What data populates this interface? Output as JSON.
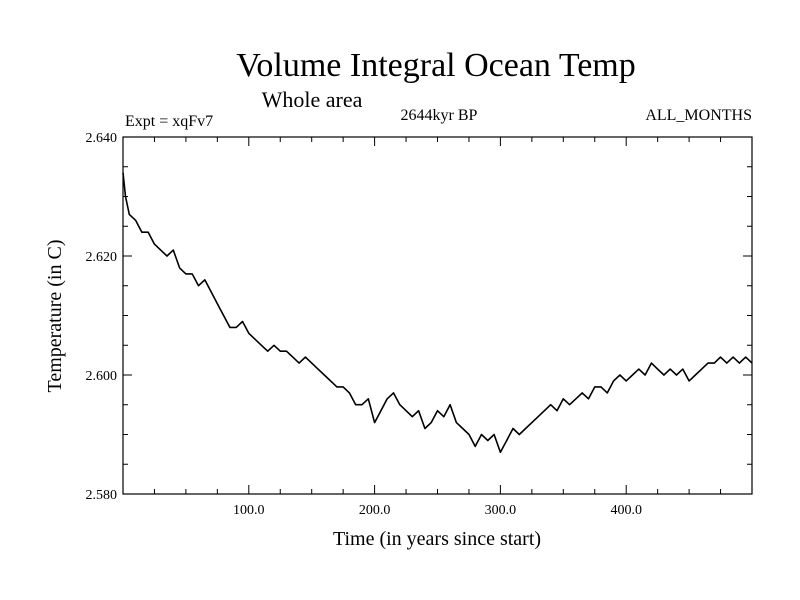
{
  "chart_data": {
    "type": "line",
    "title": "Volume Integral Ocean Temp",
    "subtitle": "Whole area",
    "experiment": "Expt = xqFv7",
    "period": "2644kyr BP",
    "months": "ALL_MONTHS",
    "xlabel": "Time (in years since start)",
    "ylabel": "Temperature (in C)",
    "xlim": [
      0,
      500
    ],
    "ylim": [
      2.58,
      2.64
    ],
    "xticks": [
      100,
      200,
      300,
      400
    ],
    "xtick_labels": [
      "100.0",
      "200.0",
      "300.0",
      "400.0"
    ],
    "yticks": [
      2.58,
      2.6,
      2.62,
      2.64
    ],
    "ytick_labels": [
      "2.580",
      "2.600",
      "2.620",
      "2.640"
    ],
    "grid": false,
    "series": [
      {
        "name": "Temperature",
        "x": [
          0,
          2,
          5,
          10,
          15,
          20,
          25,
          30,
          35,
          40,
          45,
          50,
          55,
          60,
          65,
          70,
          75,
          80,
          85,
          90,
          95,
          100,
          105,
          110,
          115,
          120,
          125,
          130,
          135,
          140,
          145,
          150,
          155,
          160,
          165,
          170,
          175,
          180,
          185,
          190,
          195,
          200,
          205,
          210,
          215,
          220,
          225,
          230,
          235,
          240,
          245,
          250,
          255,
          260,
          265,
          270,
          275,
          280,
          285,
          290,
          295,
          300,
          305,
          310,
          315,
          320,
          325,
          330,
          335,
          340,
          345,
          350,
          355,
          360,
          365,
          370,
          375,
          380,
          385,
          390,
          395,
          400,
          405,
          410,
          415,
          420,
          425,
          430,
          435,
          440,
          445,
          450,
          455,
          460,
          465,
          470,
          475,
          480,
          485,
          490,
          495,
          500
        ],
        "values": [
          2.634,
          2.63,
          2.627,
          2.626,
          2.624,
          2.624,
          2.622,
          2.621,
          2.62,
          2.621,
          2.618,
          2.617,
          2.617,
          2.615,
          2.616,
          2.614,
          2.612,
          2.61,
          2.608,
          2.608,
          2.609,
          2.607,
          2.606,
          2.605,
          2.604,
          2.605,
          2.604,
          2.604,
          2.603,
          2.602,
          2.603,
          2.602,
          2.601,
          2.6,
          2.599,
          2.598,
          2.598,
          2.597,
          2.595,
          2.595,
          2.596,
          2.592,
          2.594,
          2.596,
          2.597,
          2.595,
          2.594,
          2.593,
          2.594,
          2.591,
          2.592,
          2.594,
          2.593,
          2.595,
          2.592,
          2.591,
          2.59,
          2.588,
          2.59,
          2.589,
          2.59,
          2.587,
          2.589,
          2.591,
          2.59,
          2.591,
          2.592,
          2.593,
          2.594,
          2.595,
          2.594,
          2.596,
          2.595,
          2.596,
          2.597,
          2.596,
          2.598,
          2.598,
          2.597,
          2.599,
          2.6,
          2.599,
          2.6,
          2.601,
          2.6,
          2.602,
          2.601,
          2.6,
          2.601,
          2.6,
          2.601,
          2.599,
          2.6,
          2.601,
          2.602,
          2.602,
          2.603,
          2.602,
          2.603,
          2.602,
          2.603,
          2.602
        ]
      }
    ]
  }
}
